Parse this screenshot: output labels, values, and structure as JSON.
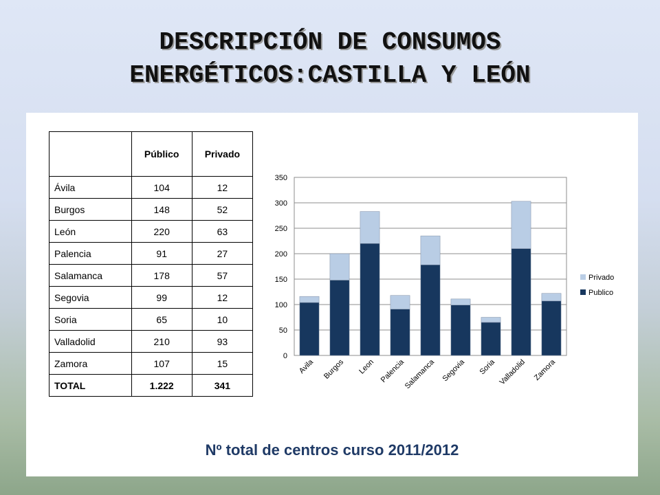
{
  "title": {
    "line1": "DESCRIPCIÓN DE CONSUMOS",
    "line2": "ENERGÉTICOS:CASTILLA Y LEÓN"
  },
  "table": {
    "headers": [
      "Público",
      "Privado"
    ],
    "rows": [
      {
        "name": "Ávila",
        "publico": "104",
        "privado": "12"
      },
      {
        "name": "Burgos",
        "publico": "148",
        "privado": "52"
      },
      {
        "name": "León",
        "publico": "220",
        "privado": "63"
      },
      {
        "name": "Palencia",
        "publico": "91",
        "privado": "27"
      },
      {
        "name": "Salamanca",
        "publico": "178",
        "privado": "57"
      },
      {
        "name": "Segovia",
        "publico": "99",
        "privado": "12"
      },
      {
        "name": "Soria",
        "publico": "65",
        "privado": "10"
      },
      {
        "name": "Valladolid",
        "publico": "210",
        "privado": "93"
      },
      {
        "name": "Zamora",
        "publico": "107",
        "privado": "15"
      }
    ],
    "total": {
      "name": "TOTAL",
      "publico": "1.222",
      "privado": "341"
    }
  },
  "caption": "Nº total de centros curso 2011/2012",
  "chart_data": {
    "type": "bar",
    "stacked": true,
    "categories": [
      "Avila",
      "Burgos",
      "Leon",
      "Palencia",
      "Salamanca",
      "Segovia",
      "Soria",
      "Valladolid",
      "Zamora"
    ],
    "series": [
      {
        "name": "Publico",
        "values": [
          104,
          148,
          220,
          91,
          178,
          99,
          65,
          210,
          107
        ],
        "color": "#17375e"
      },
      {
        "name": "Privado",
        "values": [
          12,
          52,
          63,
          27,
          57,
          12,
          10,
          93,
          15
        ],
        "color": "#b9cde5"
      }
    ],
    "ylim": [
      0,
      350
    ],
    "yticks": [
      0,
      50,
      100,
      150,
      200,
      250,
      300,
      350
    ],
    "grid": true,
    "legend": "right"
  }
}
